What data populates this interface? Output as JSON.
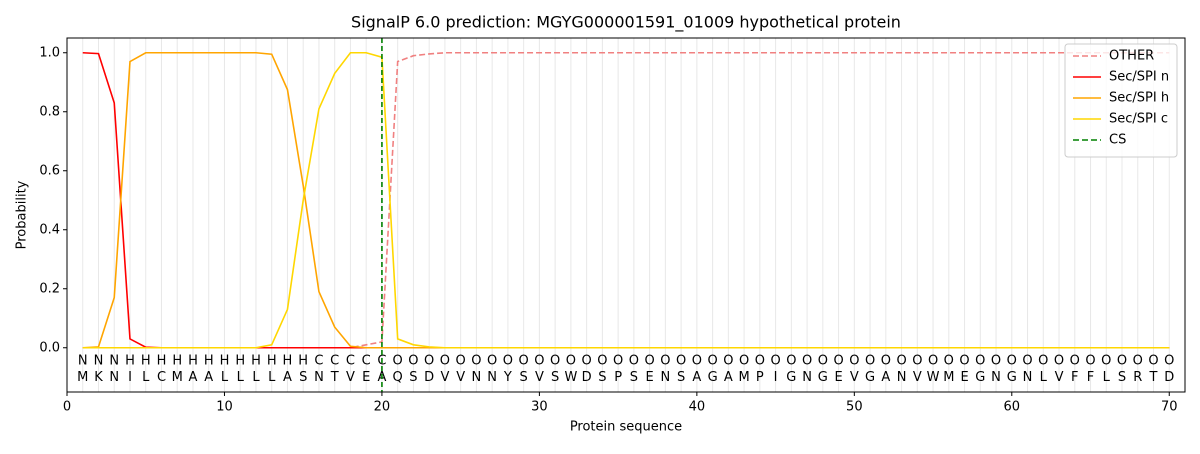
{
  "chart_data": {
    "type": "line",
    "title": "SignalP 6.0 prediction: MGYG000001591_01009 hypothetical protein",
    "x_label": "Protein sequence",
    "y_label": "Probability",
    "x": [
      1,
      2,
      3,
      4,
      5,
      6,
      7,
      8,
      9,
      10,
      11,
      12,
      13,
      14,
      15,
      16,
      17,
      18,
      19,
      20,
      21,
      22,
      23,
      24,
      25,
      26,
      27,
      28,
      29,
      30,
      31,
      32,
      33,
      34,
      35,
      36,
      37,
      38,
      39,
      40,
      41,
      42,
      43,
      44,
      45,
      46,
      47,
      48,
      49,
      50,
      51,
      52,
      53,
      54,
      55,
      56,
      57,
      58,
      59,
      60,
      61,
      62,
      63,
      64,
      65,
      66,
      67,
      68,
      69,
      70
    ],
    "sequence": [
      "M",
      "K",
      "N",
      "I",
      "L",
      "C",
      "M",
      "A",
      "A",
      "L",
      "L",
      "L",
      "L",
      "A",
      "S",
      "N",
      "T",
      "V",
      "E",
      "A",
      "Q",
      "S",
      "D",
      "V",
      "V",
      "N",
      "N",
      "Y",
      "S",
      "V",
      "S",
      "W",
      "D",
      "S",
      "P",
      "S",
      "E",
      "N",
      "S",
      "A",
      "G",
      "A",
      "M",
      "P",
      "I",
      "G",
      "N",
      "G",
      "E",
      "V",
      "G",
      "A",
      "N",
      "V",
      "W",
      "M",
      "E",
      "G",
      "N",
      "G",
      "N",
      "L",
      "V",
      "F",
      "F",
      "L",
      "S",
      "R",
      "T",
      "D"
    ],
    "labels": [
      "N",
      "N",
      "N",
      "H",
      "H",
      "H",
      "H",
      "H",
      "H",
      "H",
      "H",
      "H",
      "H",
      "H",
      "H",
      "C",
      "C",
      "C",
      "C",
      "C",
      "O",
      "O",
      "O",
      "O",
      "O",
      "O",
      "O",
      "O",
      "O",
      "O",
      "O",
      "O",
      "O",
      "O",
      "O",
      "O",
      "O",
      "O",
      "O",
      "O",
      "O",
      "O",
      "O",
      "O",
      "O",
      "O",
      "O",
      "O",
      "O",
      "O",
      "O",
      "O",
      "O",
      "O",
      "O",
      "O",
      "O",
      "O",
      "O",
      "O",
      "O",
      "O",
      "O",
      "O",
      "O",
      "O",
      "O",
      "O",
      "O",
      "O"
    ],
    "label_colors": {
      "N": "#ff0000",
      "H": "#ffa500",
      "C": "#ffd700",
      "O": "#808080"
    },
    "series": [
      {
        "name": "OTHER",
        "color": "#f08080",
        "dashed": true,
        "values": [
          0,
          0,
          0,
          0,
          0,
          0,
          0,
          0,
          0,
          0,
          0,
          0,
          0,
          0,
          0,
          0,
          0,
          0,
          0.01,
          0.02,
          0.97,
          0.99,
          0.996,
          1,
          1,
          1,
          1,
          1,
          1,
          1,
          1,
          1,
          1,
          1,
          1,
          1,
          1,
          1,
          1,
          1,
          1,
          1,
          1,
          1,
          1,
          1,
          1,
          1,
          1,
          1,
          1,
          1,
          1,
          1,
          1,
          1,
          1,
          1,
          1,
          1,
          1,
          1,
          1,
          1,
          1,
          1,
          1,
          1,
          1,
          1
        ]
      },
      {
        "name": "Sec/SPI n",
        "color": "#ff0000",
        "dashed": false,
        "values": [
          1.0,
          0.997,
          0.83,
          0.03,
          0.002,
          0,
          0,
          0,
          0,
          0,
          0,
          0,
          0,
          0,
          0,
          0,
          0,
          0,
          0,
          0,
          0,
          0,
          0,
          0,
          0,
          0,
          0,
          0,
          0,
          0,
          0,
          0,
          0,
          0,
          0,
          0,
          0,
          0,
          0,
          0,
          0,
          0,
          0,
          0,
          0,
          0,
          0,
          0,
          0,
          0,
          0,
          0,
          0,
          0,
          0,
          0,
          0,
          0,
          0,
          0,
          0,
          0,
          0,
          0,
          0,
          0,
          0,
          0,
          0,
          0
        ]
      },
      {
        "name": "Sec/SPI h",
        "color": "#ffa500",
        "dashed": false,
        "values": [
          0,
          0.003,
          0.17,
          0.97,
          1,
          1,
          1,
          1,
          1,
          1,
          1,
          1,
          0.995,
          0.875,
          0.55,
          0.19,
          0.07,
          0.005,
          0,
          0,
          0,
          0,
          0,
          0,
          0,
          0,
          0,
          0,
          0,
          0,
          0,
          0,
          0,
          0,
          0,
          0,
          0,
          0,
          0,
          0,
          0,
          0,
          0,
          0,
          0,
          0,
          0,
          0,
          0,
          0,
          0,
          0,
          0,
          0,
          0,
          0,
          0,
          0,
          0,
          0,
          0,
          0,
          0,
          0,
          0,
          0,
          0,
          0,
          0,
          0
        ]
      },
      {
        "name": "Sec/SPI c",
        "color": "#ffd700",
        "dashed": false,
        "values": [
          0,
          0,
          0,
          0,
          0,
          0,
          0,
          0,
          0,
          0,
          0,
          0,
          0.01,
          0.13,
          0.5,
          0.81,
          0.93,
          1,
          1,
          0.985,
          0.03,
          0.01,
          0.003,
          0,
          0,
          0,
          0,
          0,
          0,
          0,
          0,
          0,
          0,
          0,
          0,
          0,
          0,
          0,
          0,
          0,
          0,
          0,
          0,
          0,
          0,
          0,
          0,
          0,
          0,
          0,
          0,
          0,
          0,
          0,
          0,
          0,
          0,
          0,
          0,
          0,
          0,
          0,
          0,
          0,
          0,
          0,
          0,
          0,
          0,
          0
        ]
      }
    ],
    "cs": {
      "name": "CS",
      "x": 20,
      "color": "#008000"
    },
    "xlim": [
      0,
      71
    ],
    "xticks": [
      0,
      10,
      20,
      30,
      40,
      50,
      60,
      70
    ],
    "ylim": [
      -0.15,
      1.05
    ],
    "yticks": [
      {
        "value": 0,
        "label": "0.0"
      },
      0.2,
      0.4,
      0.6,
      0.8,
      {
        "value": 1,
        "label": "1.0"
      }
    ],
    "legend": "upper right"
  }
}
